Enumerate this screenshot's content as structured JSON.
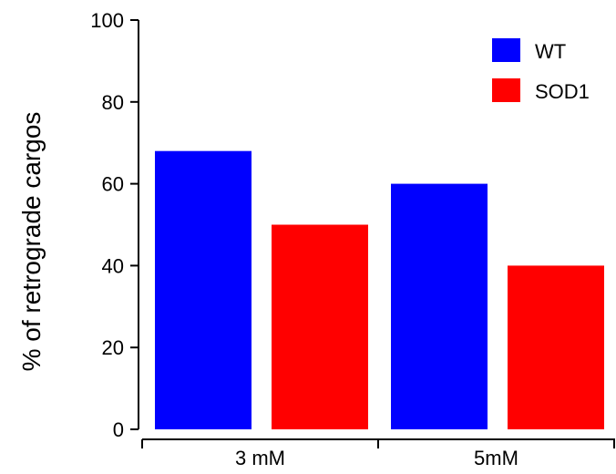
{
  "chart_data": {
    "type": "bar",
    "categories": [
      "3 mM",
      "5mM"
    ],
    "series": [
      {
        "name": "WT",
        "values": [
          68,
          60
        ],
        "color": "#0000ff"
      },
      {
        "name": "SOD1",
        "values": [
          50,
          40
        ],
        "color": "#ff0000"
      }
    ],
    "title": "",
    "xlabel": "",
    "ylabel": "% of retrograde cargos",
    "ylim": [
      0,
      100
    ],
    "yticks": [
      0,
      20,
      40,
      60,
      80,
      100
    ],
    "grid": false,
    "legend": "top-right"
  }
}
